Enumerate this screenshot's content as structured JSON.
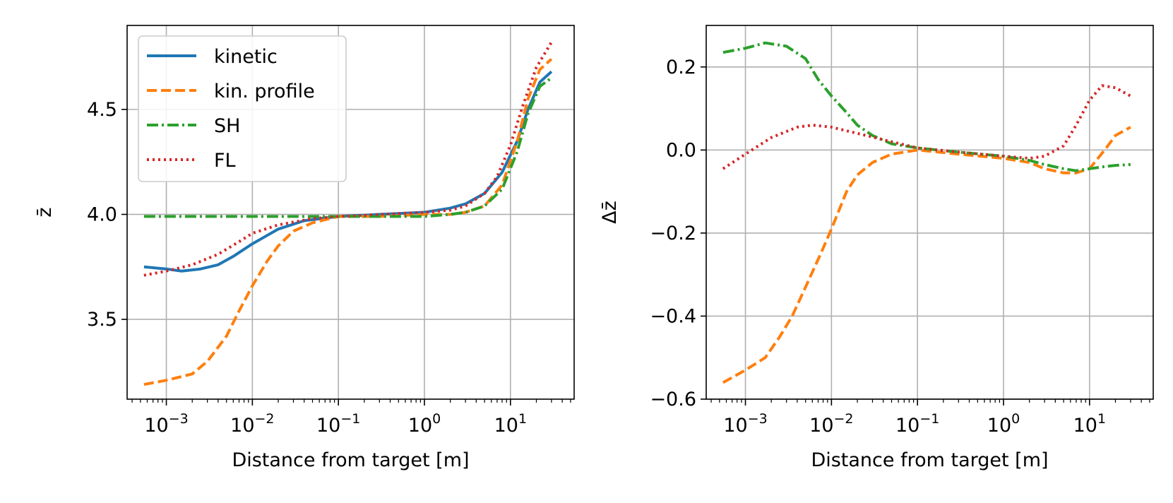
{
  "chart_data": [
    {
      "type": "line",
      "xscale": "log",
      "xlabel": "Distance from target [m]",
      "ylabel": "z̄",
      "xlim": [
        0.00035,
        55
      ],
      "ylim": [
        3.12,
        4.9
      ],
      "grid": true,
      "legend_position": "top-left",
      "x_ticks": [
        {
          "value": 0.001,
          "base": "10",
          "exp": "−3"
        },
        {
          "value": 0.01,
          "base": "10",
          "exp": "−2"
        },
        {
          "value": 0.1,
          "base": "10",
          "exp": "−1"
        },
        {
          "value": 1,
          "base": "10",
          "exp": "0"
        },
        {
          "value": 10,
          "base": "10",
          "exp": "1"
        }
      ],
      "y_ticks": [
        {
          "value": 3.5,
          "label": "3.5"
        },
        {
          "value": 4.0,
          "label": "4.0"
        },
        {
          "value": 4.5,
          "label": "4.5"
        }
      ],
      "series": [
        {
          "name": "kinetic",
          "color": "#1f77b4",
          "dash": "solid",
          "x": [
            0.00055,
            0.001,
            0.0015,
            0.0025,
            0.004,
            0.006,
            0.01,
            0.02,
            0.04,
            0.1,
            0.3,
            1,
            2,
            3,
            5,
            8,
            12,
            16,
            22,
            30
          ],
          "y": [
            3.75,
            3.74,
            3.73,
            3.74,
            3.76,
            3.8,
            3.86,
            3.93,
            3.97,
            3.99,
            4.0,
            4.01,
            4.03,
            4.05,
            4.1,
            4.2,
            4.35,
            4.5,
            4.63,
            4.68
          ]
        },
        {
          "name": "kin. profile",
          "color": "#ff7f0e",
          "dash": "dashed",
          "x": [
            0.00055,
            0.001,
            0.002,
            0.003,
            0.005,
            0.007,
            0.01,
            0.015,
            0.02,
            0.03,
            0.05,
            0.1,
            0.3,
            1,
            2,
            3,
            5,
            8,
            12,
            16,
            22,
            30
          ],
          "y": [
            3.19,
            3.21,
            3.24,
            3.3,
            3.42,
            3.54,
            3.66,
            3.78,
            3.85,
            3.92,
            3.96,
            3.99,
            3.99,
            4.0,
            4.0,
            4.01,
            4.04,
            4.14,
            4.35,
            4.55,
            4.69,
            4.74
          ]
        },
        {
          "name": "SH",
          "color": "#2ca02c",
          "dash": "dashdot",
          "x": [
            0.00055,
            0.001,
            0.01,
            0.1,
            1,
            2,
            3,
            5,
            8,
            12,
            16,
            22,
            30
          ],
          "y": [
            3.99,
            3.99,
            3.99,
            3.99,
            3.99,
            4.0,
            4.01,
            4.04,
            4.12,
            4.3,
            4.48,
            4.61,
            4.65
          ]
        },
        {
          "name": "FL",
          "color": "#d62728",
          "dash": "dotted",
          "x": [
            0.00055,
            0.001,
            0.002,
            0.004,
            0.007,
            0.01,
            0.02,
            0.05,
            0.1,
            0.3,
            1,
            2,
            3,
            5,
            7,
            10,
            14,
            20,
            30
          ],
          "y": [
            3.71,
            3.73,
            3.76,
            3.81,
            3.87,
            3.91,
            3.95,
            3.98,
            3.99,
            4.0,
            4.01,
            4.02,
            4.04,
            4.1,
            4.18,
            4.33,
            4.52,
            4.7,
            4.82
          ]
        }
      ]
    },
    {
      "type": "line",
      "xscale": "log",
      "xlabel": "Distance from target [m]",
      "ylabel": "Δz̄",
      "xlim": [
        0.00035,
        55
      ],
      "ylim": [
        -0.6,
        0.3
      ],
      "grid": true,
      "x_ticks": [
        {
          "value": 0.001,
          "base": "10",
          "exp": "−3"
        },
        {
          "value": 0.01,
          "base": "10",
          "exp": "−2"
        },
        {
          "value": 0.1,
          "base": "10",
          "exp": "−1"
        },
        {
          "value": 1,
          "base": "10",
          "exp": "0"
        },
        {
          "value": 10,
          "base": "10",
          "exp": "1"
        }
      ],
      "y_ticks": [
        {
          "value": -0.6,
          "label": "−0.6"
        },
        {
          "value": -0.4,
          "label": "−0.4"
        },
        {
          "value": -0.2,
          "label": "−0.2"
        },
        {
          "value": 0.0,
          "label": "0.0"
        },
        {
          "value": 0.2,
          "label": "0.2"
        }
      ],
      "series": [
        {
          "name": "kin. profile",
          "color": "#ff7f0e",
          "dash": "dashed",
          "x": [
            0.00055,
            0.001,
            0.0017,
            0.0025,
            0.0035,
            0.005,
            0.0075,
            0.01,
            0.015,
            0.02,
            0.03,
            0.05,
            0.1,
            0.3,
            1,
            2,
            3,
            5,
            7,
            10,
            15,
            20,
            30
          ],
          "y": [
            -0.56,
            -0.53,
            -0.5,
            -0.45,
            -0.4,
            -0.33,
            -0.25,
            -0.19,
            -0.1,
            -0.06,
            -0.03,
            -0.01,
            0.0,
            -0.01,
            -0.02,
            -0.03,
            -0.045,
            -0.055,
            -0.055,
            -0.045,
            0.0,
            0.035,
            0.055
          ]
        },
        {
          "name": "SH",
          "color": "#2ca02c",
          "dash": "dashdot",
          "x": [
            0.00055,
            0.001,
            0.0017,
            0.003,
            0.005,
            0.007,
            0.01,
            0.015,
            0.02,
            0.03,
            0.05,
            0.1,
            0.3,
            1,
            2,
            3,
            5,
            7,
            10,
            15,
            20,
            30
          ],
          "y": [
            0.235,
            0.245,
            0.258,
            0.25,
            0.22,
            0.17,
            0.13,
            0.09,
            0.06,
            0.035,
            0.015,
            0.005,
            -0.005,
            -0.015,
            -0.025,
            -0.035,
            -0.045,
            -0.05,
            -0.045,
            -0.04,
            -0.037,
            -0.035
          ]
        },
        {
          "name": "FL",
          "color": "#d62728",
          "dash": "dotted",
          "x": [
            0.00055,
            0.001,
            0.002,
            0.004,
            0.006,
            0.01,
            0.02,
            0.05,
            0.1,
            0.3,
            1,
            2,
            3,
            5,
            7,
            10,
            14,
            20,
            30
          ],
          "y": [
            -0.045,
            -0.01,
            0.03,
            0.055,
            0.06,
            0.055,
            0.04,
            0.02,
            0.005,
            -0.005,
            -0.015,
            -0.02,
            -0.015,
            0.01,
            0.06,
            0.12,
            0.155,
            0.15,
            0.13
          ]
        }
      ]
    }
  ]
}
